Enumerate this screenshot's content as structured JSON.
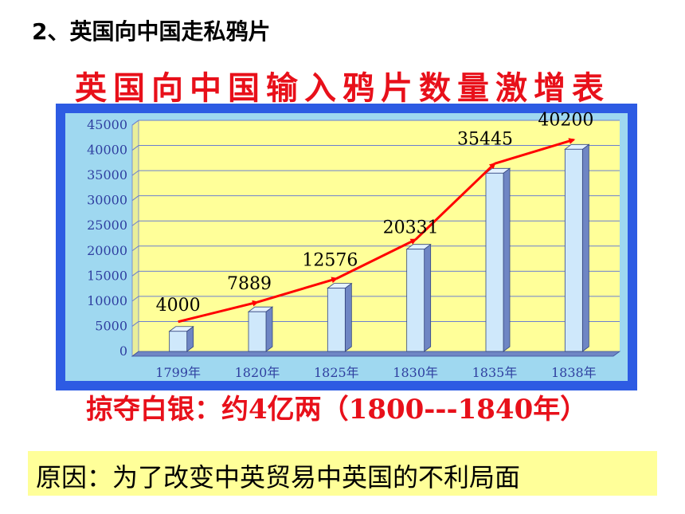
{
  "heading": "2、英国向中国走私鸦片",
  "chart_data": {
    "type": "bar",
    "title": "英国向中国输入鸦片数量激增表",
    "categories": [
      "1799年",
      "1820年",
      "1825年",
      "1830年",
      "1835年",
      "1838年"
    ],
    "values": [
      4000,
      7889,
      12576,
      20331,
      35445,
      40200
    ],
    "data_labels": [
      "4000",
      "7889",
      "12576",
      "20331",
      "35445",
      "40200"
    ],
    "yticks": [
      "0",
      "5000",
      "10000",
      "15000",
      "20000",
      "25000",
      "30000",
      "35000",
      "40000",
      "45000"
    ],
    "ylim": [
      0,
      45000
    ],
    "grid": true,
    "trend_line": true,
    "colors": {
      "frame": "#2d5be3",
      "plot_bg": "#ffff99",
      "plot_border": "#9fd8f0",
      "bar_front": "#cfe8fb",
      "bar_side": "#6f86c4",
      "trend": "#ff0000",
      "tick_text": "#2f3fa0",
      "grid": "#6b7fd0"
    }
  },
  "note": "掠夺白银：约4亿两（1800---1840年）",
  "reason": "原因：为了改变中英贸易中英国的不利局面"
}
